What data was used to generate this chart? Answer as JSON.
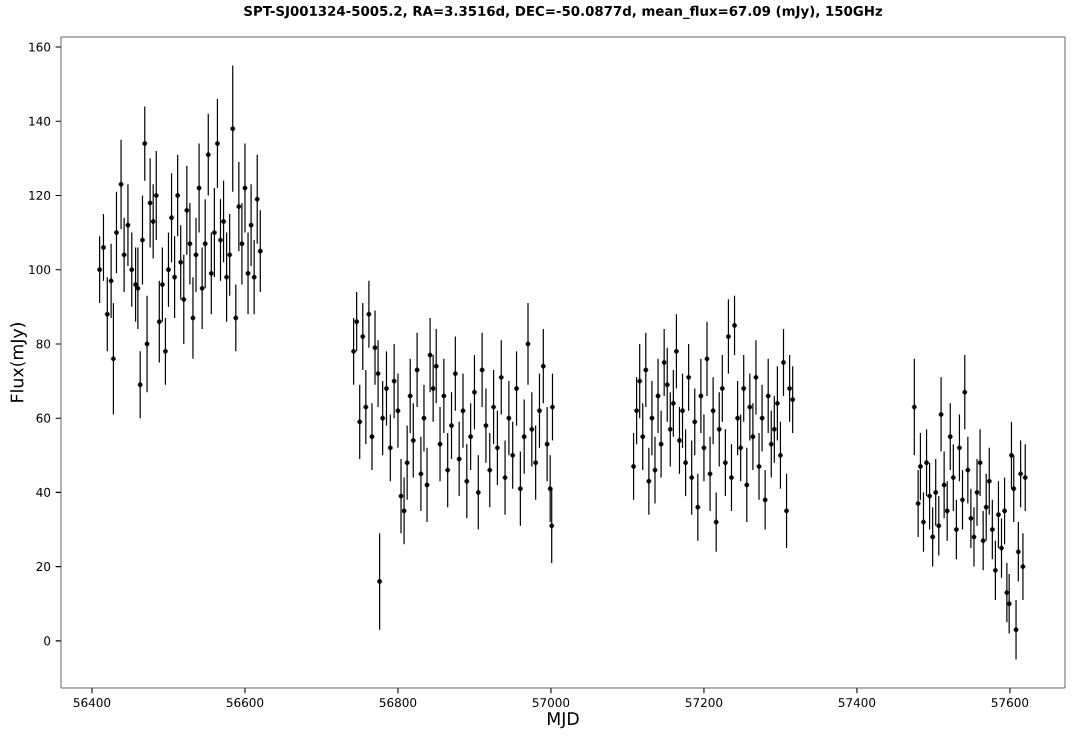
{
  "chart_data": {
    "type": "scatter",
    "title": "SPT-SJ001324-5005.2, RA=3.3516d, DEC=-50.0877d, mean_flux=67.09 (mJy), 150GHz",
    "xlabel": "MJD",
    "ylabel": "Flux(mJy)",
    "xlim": [
      56359.5,
      57672
    ],
    "ylim": [
      -12.7,
      162.7
    ],
    "xticks": [
      56400,
      56600,
      56800,
      57000,
      57200,
      57400,
      57600
    ],
    "yticks": [
      0,
      20,
      40,
      60,
      80,
      100,
      120,
      140,
      160
    ],
    "grid": false,
    "marker": "circle",
    "series": [
      {
        "color": "#000000",
        "x": [
          56410,
          56415,
          56420,
          56425,
          56428,
          56432,
          56438,
          56442,
          56447,
          56452,
          56457,
          56460,
          56463,
          56466,
          56469,
          56472,
          56476,
          56480,
          56484,
          56488,
          56492,
          56496,
          56500,
          56504,
          56508,
          56512,
          56516,
          56520,
          56524,
          56528,
          56532,
          56536,
          56540,
          56544,
          56548,
          56552,
          56556,
          56560,
          56564,
          56568,
          56572,
          56576,
          56580,
          56584,
          56588,
          56592,
          56596,
          56600,
          56604,
          56608,
          56612,
          56616,
          56620
        ],
        "values": [
          100,
          106,
          88,
          97,
          76,
          110,
          123,
          104,
          112,
          100,
          96,
          95,
          69,
          108,
          134,
          80,
          118,
          113,
          120,
          86,
          96,
          78,
          100,
          114,
          98,
          120,
          102,
          92,
          116,
          107,
          87,
          104,
          122,
          95,
          107,
          131,
          99,
          110,
          134,
          108,
          113,
          98,
          104,
          138,
          87,
          117,
          107,
          122,
          99,
          112,
          98,
          119,
          105
        ],
        "errors": [
          9,
          9,
          10,
          10,
          15,
          11,
          12,
          10,
          11,
          10,
          10,
          11,
          9,
          12,
          10,
          13,
          12,
          10,
          12,
          11,
          10,
          9,
          10,
          12,
          11,
          11,
          10,
          12,
          12,
          11,
          11,
          10,
          12,
          11,
          12,
          11,
          11,
          12,
          12,
          11,
          11,
          12,
          11,
          17,
          9,
          12,
          11,
          12,
          11,
          11,
          10,
          12,
          11
        ]
      },
      {
        "color": "#000000",
        "x": [
          56742,
          56746,
          56750,
          56754,
          56758,
          56762,
          56766,
          56770,
          56774,
          56776,
          56780,
          56785,
          56790,
          56795,
          56800,
          56804,
          56808,
          56812,
          56816,
          56820,
          56825,
          56830,
          56834,
          56838,
          56842,
          56846,
          56850,
          56855,
          56860,
          56865,
          56870,
          56875,
          56880,
          56885,
          56890,
          56895,
          56900,
          56905,
          56910,
          56915,
          56920,
          56925,
          56930,
          56935,
          56940,
          56945,
          56950,
          56955,
          56960,
          56965,
          56970,
          56975,
          56980,
          56985,
          56990,
          56995,
          56999,
          57001,
          57002
        ],
        "values": [
          78,
          86,
          59,
          82,
          63,
          88,
          55,
          79,
          72,
          16,
          60,
          68,
          52,
          70,
          62,
          39,
          35,
          48,
          66,
          54,
          73,
          45,
          60,
          42,
          77,
          68,
          74,
          53,
          66,
          46,
          58,
          72,
          49,
          62,
          43,
          55,
          67,
          40,
          73,
          58,
          46,
          63,
          52,
          71,
          44,
          60,
          50,
          68,
          41,
          55,
          80,
          57,
          48,
          62,
          74,
          53,
          41,
          31,
          63
        ],
        "errors": [
          9,
          8,
          10,
          9,
          10,
          9,
          9,
          10,
          9,
          13,
          10,
          10,
          9,
          10,
          10,
          10,
          9,
          10,
          10,
          10,
          10,
          10,
          9,
          10,
          10,
          9,
          10,
          10,
          10,
          10,
          9,
          10,
          10,
          10,
          10,
          9,
          10,
          10,
          10,
          10,
          10,
          10,
          10,
          10,
          10,
          10,
          9,
          10,
          10,
          10,
          11,
          10,
          10,
          10,
          10,
          10,
          9,
          10,
          9
        ]
      },
      {
        "color": "#000000",
        "x": [
          57108,
          57112,
          57116,
          57120,
          57124,
          57128,
          57132,
          57136,
          57140,
          57144,
          57148,
          57152,
          57156,
          57160,
          57164,
          57168,
          57172,
          57176,
          57180,
          57184,
          57188,
          57192,
          57196,
          57200,
          57204,
          57208,
          57212,
          57216,
          57220,
          57224,
          57228,
          57232,
          57236,
          57240,
          57244,
          57248,
          57252,
          57256,
          57260,
          57264,
          57268,
          57272,
          57276,
          57280,
          57284,
          57288,
          57292,
          57296,
          57300,
          57304,
          57308,
          57312,
          57316
        ],
        "values": [
          47,
          62,
          70,
          55,
          73,
          43,
          60,
          46,
          66,
          53,
          75,
          69,
          57,
          64,
          78,
          54,
          62,
          48,
          71,
          44,
          59,
          36,
          66,
          52,
          76,
          45,
          62,
          32,
          57,
          68,
          48,
          82,
          44,
          85,
          60,
          52,
          68,
          42,
          63,
          55,
          71,
          47,
          60,
          38,
          66,
          53,
          57,
          64,
          50,
          75,
          35,
          68,
          65
        ],
        "errors": [
          9,
          9,
          10,
          9,
          10,
          9,
          10,
          9,
          10,
          9,
          9,
          10,
          10,
          9,
          10,
          9,
          10,
          9,
          9,
          10,
          9,
          9,
          10,
          9,
          10,
          10,
          9,
          8,
          10,
          9,
          9,
          10,
          9,
          8,
          10,
          9,
          9,
          10,
          9,
          9,
          10,
          9,
          9,
          8,
          10,
          9,
          9,
          10,
          9,
          9,
          10,
          9,
          9
        ]
      },
      {
        "color": "#000000",
        "x": [
          57475,
          57480,
          57483,
          57487,
          57491,
          57495,
          57499,
          57503,
          57507,
          57510,
          57514,
          57518,
          57522,
          57526,
          57530,
          57534,
          57538,
          57541,
          57545,
          57549,
          57553,
          57557,
          57561,
          57565,
          57569,
          57573,
          57577,
          57581,
          57585,
          57589,
          57593,
          57596,
          57599,
          57602,
          57605,
          57608,
          57611,
          57614,
          57617,
          57620
        ],
        "values": [
          63,
          37,
          47,
          32,
          48,
          39,
          28,
          40,
          31,
          61,
          42,
          35,
          55,
          44,
          30,
          52,
          38,
          67,
          46,
          33,
          28,
          40,
          48,
          27,
          36,
          43,
          30,
          19,
          34,
          25,
          35,
          13,
          10,
          50,
          41,
          3,
          24,
          45,
          20,
          44
        ],
        "errors": [
          13,
          9,
          9,
          8,
          9,
          9,
          8,
          9,
          8,
          10,
          9,
          8,
          9,
          9,
          8,
          9,
          8,
          10,
          9,
          8,
          8,
          9,
          9,
          8,
          9,
          9,
          8,
          8,
          9,
          8,
          9,
          8,
          8,
          9,
          9,
          8,
          8,
          9,
          9,
          9
        ]
      }
    ]
  }
}
